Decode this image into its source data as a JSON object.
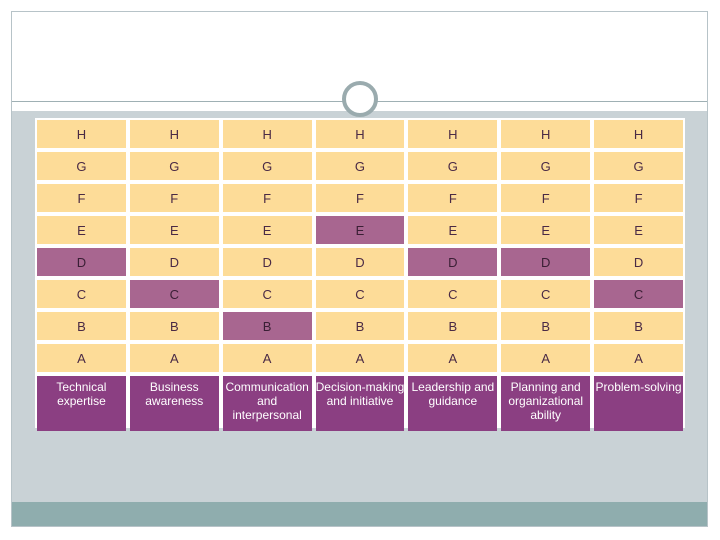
{
  "levels": [
    "H",
    "G",
    "F",
    "E",
    "D",
    "C",
    "B",
    "A"
  ],
  "columns": [
    {
      "label": "Technical expertise",
      "selected": "D"
    },
    {
      "label": "Business awareness",
      "selected": "C"
    },
    {
      "label": "Communication and interpersonal",
      "selected": "B"
    },
    {
      "label": "Decision-making and initiative",
      "selected": "E"
    },
    {
      "label": "Leadership and guidance",
      "selected": "D"
    },
    {
      "label": "Planning and organizational ability",
      "selected": "D"
    },
    {
      "label": "Problem-solving",
      "selected": "C"
    }
  ],
  "colors": {
    "cell": "#fddc98",
    "selected": "#a86690",
    "label": "#8b3f82",
    "panel": "#c9d2d6",
    "footer": "#8fadae"
  }
}
